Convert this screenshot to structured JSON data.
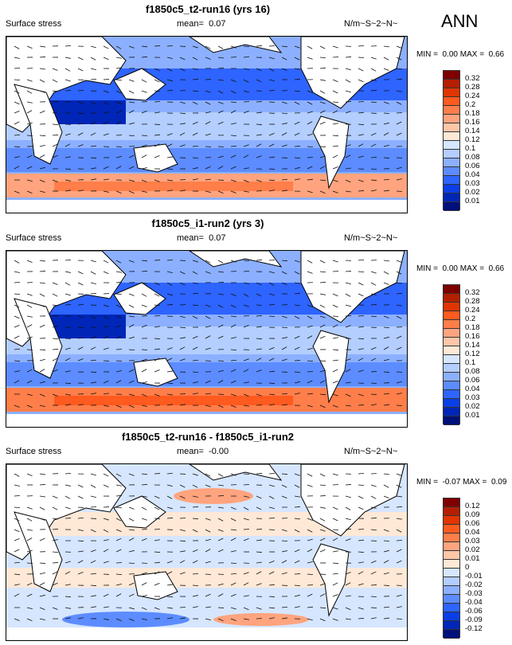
{
  "season": "ANN",
  "panels": [
    {
      "title": "f1850c5_t2-run16 (yrs 16)",
      "variable": "Surface stress",
      "mean_label": "mean=",
      "mean": "0.07",
      "units": "N/m~S~2~N~",
      "min_label": "MIN =",
      "min": "0.00",
      "max_label": "MAX =",
      "max": "0.66",
      "levels": [
        "0.32",
        "0.28",
        "0.24",
        "0.2",
        "0.18",
        "0.16",
        "0.14",
        "0.12",
        "0.1",
        "0.08",
        "0.06",
        "0.04",
        "0.03",
        "0.02",
        "0.01"
      ]
    },
    {
      "title": "f1850c5_i1-run2 (yrs 3)",
      "variable": "Surface stress",
      "mean_label": "mean=",
      "mean": "0.07",
      "units": "N/m~S~2~N~",
      "min_label": "MIN =",
      "min": "0.00",
      "max_label": "MAX =",
      "max": "0.66",
      "levels": [
        "0.32",
        "0.28",
        "0.24",
        "0.2",
        "0.18",
        "0.16",
        "0.14",
        "0.12",
        "0.1",
        "0.08",
        "0.06",
        "0.04",
        "0.03",
        "0.02",
        "0.01"
      ]
    },
    {
      "title": "f1850c5_t2-run16 - f1850c5_i1-run2",
      "variable": "Surface stress",
      "mean_label": "mean=",
      "mean": "-0.00",
      "units": "N/m~S~2~N~",
      "min_label": "MIN =",
      "min": "-0.07",
      "max_label": "MAX =",
      "max": "0.09",
      "levels": [
        "0.12",
        "0.09",
        "0.06",
        "0.04",
        "0.03",
        "0.02",
        "0.01",
        "0",
        "-0.01",
        "-0.02",
        "-0.03",
        "-0.04",
        "-0.06",
        "-0.09",
        "-0.12"
      ]
    }
  ],
  "colors": [
    "#7f0000",
    "#b31f00",
    "#e03500",
    "#ff5a1f",
    "#ff7e4a",
    "#ffa47e",
    "#ffc6a8",
    "#ffe8d6",
    "#d6e6ff",
    "#b3ceff",
    "#8cb0ff",
    "#5c8cff",
    "#2e64ff",
    "#0a3fe6",
    "#0026b8",
    "#00107a"
  ]
}
